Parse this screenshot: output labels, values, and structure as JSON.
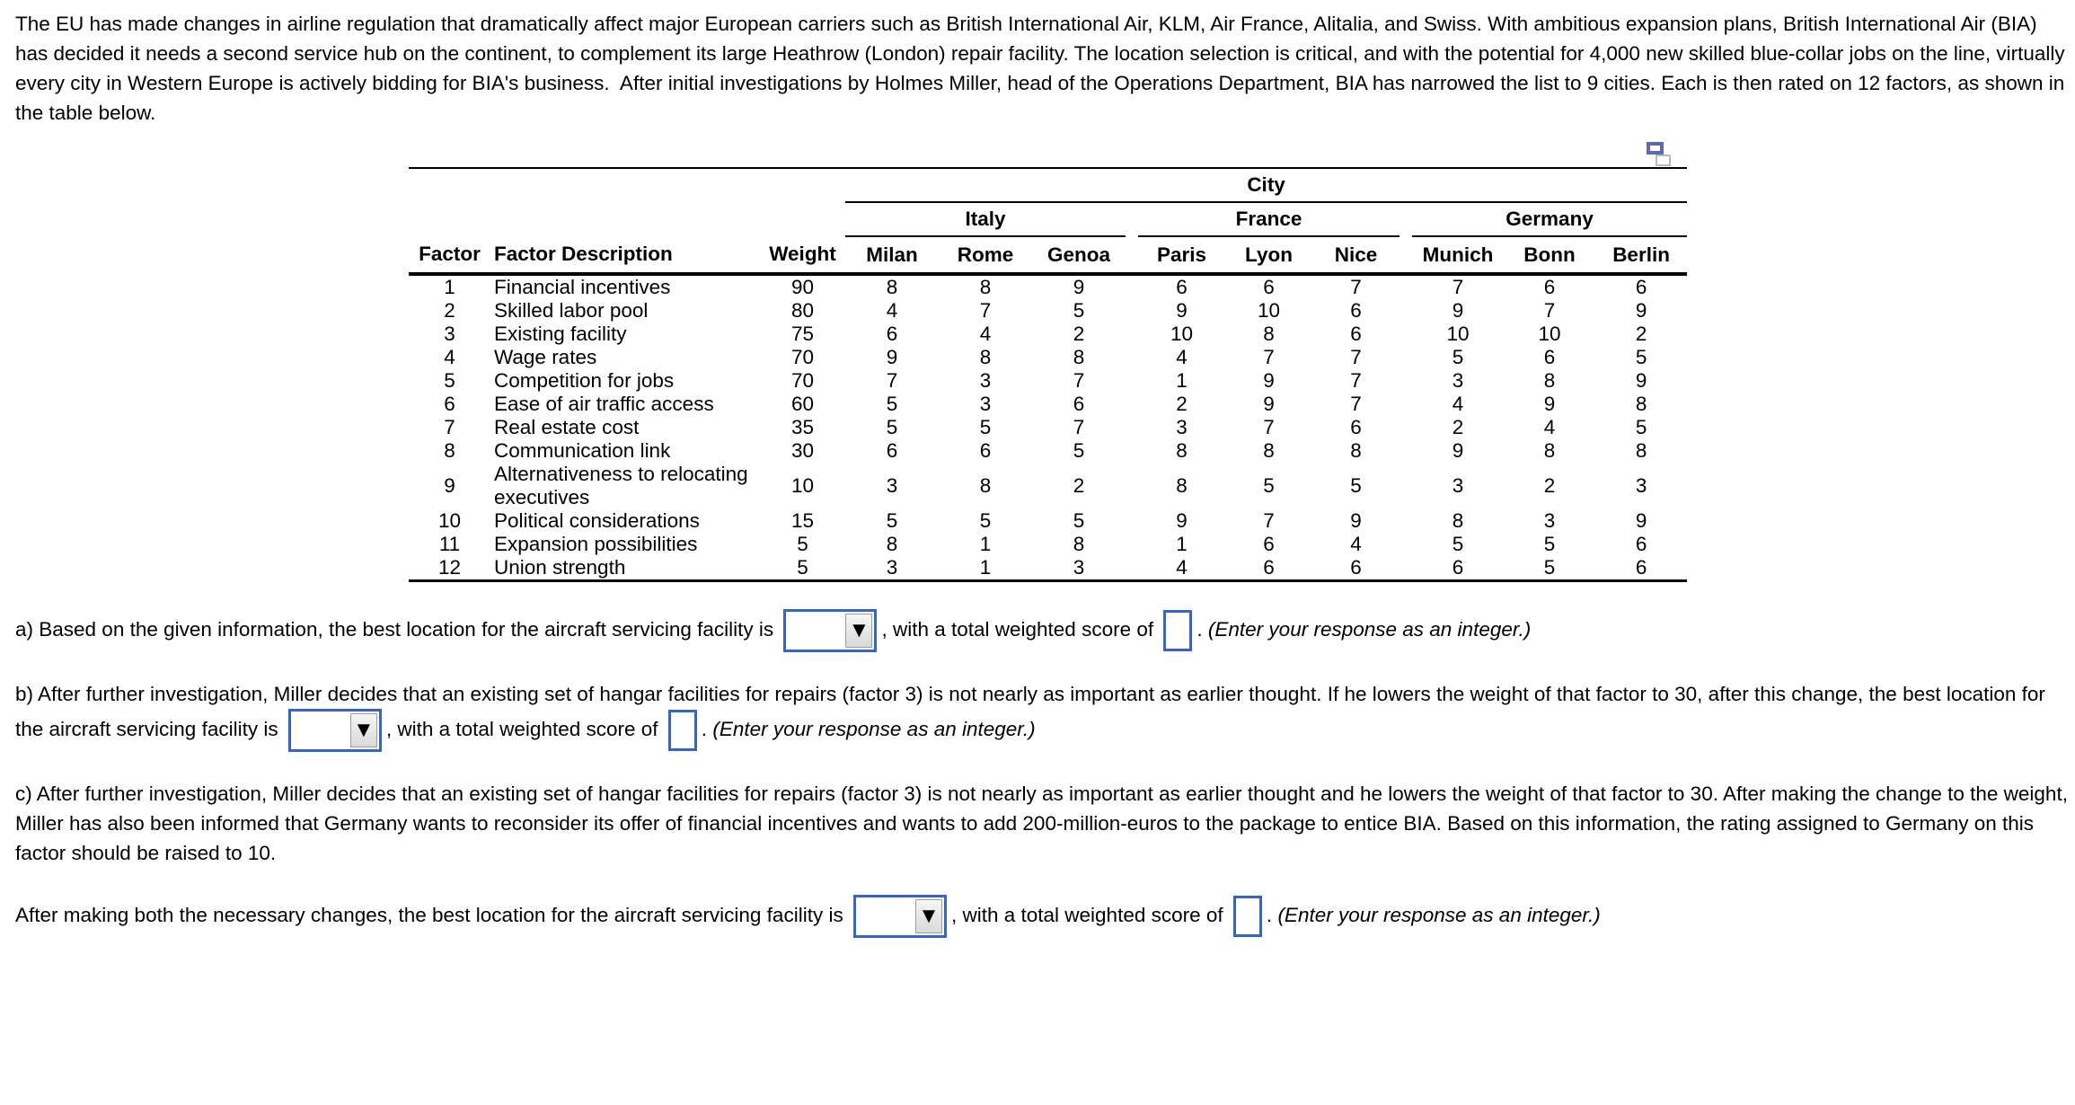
{
  "intro": "The EU has made changes in airline regulation that dramatically affect major European carriers such as British International Air, KLM, Air France, Alitalia, and Swiss. With ambitious expansion plans, British International Air (BIA) has decided it needs a second service hub on the continent, to complement its large Heathrow (London) repair facility. The location selection is critical, and with the potential for 4,000 new skilled blue-collar jobs on the line, virtually every city in Western Europe is actively bidding for BIA's business.  After initial investigations by Holmes Miller, head of the Operations Department, BIA has narrowed the list to 9 cities. Each is then rated on 12 factors, as shown in the table below.",
  "icons": {
    "dropdown_arrow": "▼",
    "popout": "open-in-new-window"
  },
  "colors": {
    "control_border_blue": "#3465c9",
    "popout_dark_blue": "#5c69ae",
    "popout_light_blue": "#b2b7da"
  },
  "table": {
    "city_header": "City",
    "groups": [
      "Italy",
      "France",
      "Germany"
    ],
    "headers": {
      "factor": "Factor",
      "description": "Factor Description",
      "weight": "Weight",
      "cities": [
        "Milan",
        "Rome",
        "Genoa",
        "Paris",
        "Lyon",
        "Nice",
        "Munich",
        "Bonn",
        "Berlin"
      ]
    },
    "rows": [
      {
        "factor": "1",
        "description": "Financial incentives",
        "weight": "90",
        "ratings": [
          "8",
          "8",
          "9",
          "6",
          "6",
          "7",
          "7",
          "6",
          "6"
        ]
      },
      {
        "factor": "2",
        "description": "Skilled labor pool",
        "weight": "80",
        "ratings": [
          "4",
          "7",
          "5",
          "9",
          "10",
          "6",
          "9",
          "7",
          "9"
        ]
      },
      {
        "factor": "3",
        "description": "Existing facility",
        "weight": "75",
        "ratings": [
          "6",
          "4",
          "2",
          "10",
          "8",
          "6",
          "10",
          "10",
          "2"
        ]
      },
      {
        "factor": "4",
        "description": "Wage rates",
        "weight": "70",
        "ratings": [
          "9",
          "8",
          "8",
          "4",
          "7",
          "7",
          "5",
          "6",
          "5"
        ]
      },
      {
        "factor": "5",
        "description": "Competition for jobs",
        "weight": "70",
        "ratings": [
          "7",
          "3",
          "7",
          "1",
          "9",
          "7",
          "3",
          "8",
          "9"
        ]
      },
      {
        "factor": "6",
        "description": "Ease of air traffic access",
        "weight": "60",
        "ratings": [
          "5",
          "3",
          "6",
          "2",
          "9",
          "7",
          "4",
          "9",
          "8"
        ]
      },
      {
        "factor": "7",
        "description": "Real estate cost",
        "weight": "35",
        "ratings": [
          "5",
          "5",
          "7",
          "3",
          "7",
          "6",
          "2",
          "4",
          "5"
        ]
      },
      {
        "factor": "8",
        "description": "Communication link",
        "weight": "30",
        "ratings": [
          "6",
          "6",
          "5",
          "8",
          "8",
          "8",
          "9",
          "8",
          "8"
        ]
      },
      {
        "factor": "9",
        "description": "Alternativeness to relocating executives",
        "weight": "10",
        "ratings": [
          "3",
          "8",
          "2",
          "8",
          "5",
          "5",
          "3",
          "2",
          "3"
        ]
      },
      {
        "factor": "10",
        "description": "Political considerations",
        "weight": "15",
        "ratings": [
          "5",
          "5",
          "5",
          "9",
          "7",
          "9",
          "8",
          "3",
          "9"
        ]
      },
      {
        "factor": "11",
        "description": "Expansion possibilities",
        "weight": "5",
        "ratings": [
          "8",
          "1",
          "8",
          "1",
          "6",
          "4",
          "5",
          "5",
          "6"
        ]
      },
      {
        "factor": "12",
        "description": "Union strength",
        "weight": "5",
        "ratings": [
          "3",
          "1",
          "3",
          "4",
          "6",
          "6",
          "6",
          "5",
          "6"
        ]
      }
    ]
  },
  "questions": {
    "a": {
      "before_select": "a) Based on the given information, the best location for the aircraft servicing facility is",
      "between": ", with a total weighted score of",
      "after_box": ".",
      "note": "(Enter your response as an integer.)",
      "select_value": "",
      "score_value": ""
    },
    "b": {
      "before_select": "b) After further investigation, Miller decides that an existing set of hangar facilities for repairs (factor 3) is not nearly as important as earlier thought. If he lowers the weight of that factor to 30, after this change, the best location for the aircraft servicing facility is",
      "between": ", with a total weighted score of",
      "after_box": ".",
      "note": "(Enter your response as an integer.)",
      "select_value": "",
      "score_value": ""
    },
    "c": {
      "text": "c) After further investigation, Miller decides that an existing set of hangar facilities for repairs (factor 3) is not nearly as important as earlier thought and he lowers the weight of that factor to 30. After making the change to the weight, Miller has also been informed that Germany wants to reconsider its offer of financial incentives and wants to add 200-million-euros to the package to entice BIA. Based on this information, the rating assigned to Germany on this factor should be raised to 10."
    },
    "d": {
      "before_select": "After making both the necessary changes, the best location for the aircraft servicing facility is",
      "between": ", with a total weighted score of",
      "after_box": ".",
      "note": "(Enter your response as an integer.)",
      "select_value": "",
      "score_value": ""
    }
  }
}
